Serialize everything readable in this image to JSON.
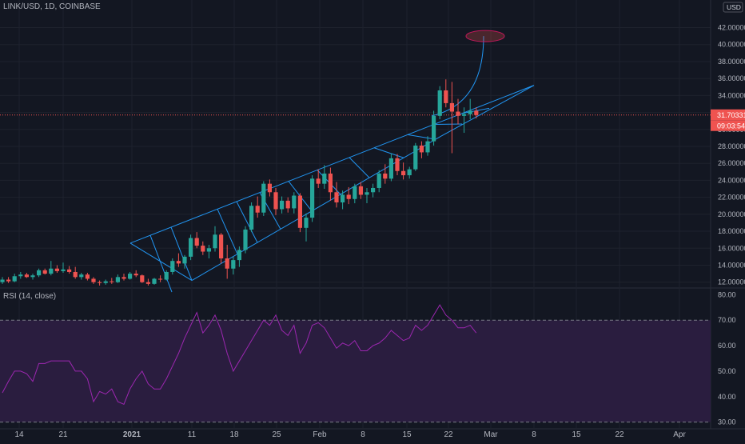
{
  "header": {
    "symbol_line": "LINK/USD, 1D, COINBASE"
  },
  "rsi_title": "RSI (14, close)",
  "price_badges": {
    "currency": "USD",
    "last_price": "31.70331",
    "countdown": "09:03:54"
  },
  "colors": {
    "background": "#131722",
    "up": "#26a69a",
    "down": "#ef5350",
    "channel": "#2196f3",
    "rsi_line": "#9c27b0",
    "rsi_band": "#2a1d3f",
    "price_line": "#ef5350",
    "grid": "#1e222d"
  },
  "chart_data": [
    {
      "type": "candlestick",
      "title": "LINK/USD, 1D, COINBASE",
      "ylim": [
        11.5,
        44.5
      ],
      "y_ticks": [
        "12.00000",
        "14.00000",
        "16.00000",
        "18.00000",
        "20.00000",
        "22.00000",
        "24.00000",
        "26.00000",
        "28.00000",
        "30.00000",
        "32.00000",
        "34.00000",
        "36.00000",
        "38.00000",
        "40.00000",
        "42.00000"
      ],
      "x_ticks": [
        "14",
        "21",
        "2021",
        "11",
        "18",
        "25",
        "Feb",
        "8",
        "15",
        "22",
        "Mar",
        "8",
        "15",
        "22",
        "Apr"
      ],
      "last_price": 31.70331,
      "candles": [
        [
          12.0,
          12.6,
          11.8,
          12.3
        ],
        [
          12.3,
          12.6,
          11.9,
          12.1
        ],
        [
          12.1,
          13.0,
          12.0,
          12.7
        ],
        [
          12.7,
          13.2,
          12.4,
          12.9
        ],
        [
          12.9,
          13.1,
          12.5,
          12.6
        ],
        [
          12.6,
          13.0,
          12.3,
          12.8
        ],
        [
          12.8,
          13.6,
          12.6,
          13.4
        ],
        [
          13.4,
          13.6,
          12.9,
          13.0
        ],
        [
          13.0,
          14.5,
          12.8,
          13.6
        ],
        [
          13.6,
          14.0,
          13.1,
          13.3
        ],
        [
          13.3,
          14.3,
          13.1,
          13.5
        ],
        [
          13.5,
          13.9,
          13.0,
          13.2
        ],
        [
          13.2,
          13.8,
          12.4,
          12.6
        ],
        [
          12.6,
          13.1,
          12.3,
          12.9
        ],
        [
          12.9,
          13.1,
          12.2,
          12.4
        ],
        [
          12.4,
          12.6,
          11.8,
          12.0
        ],
        [
          12.0,
          12.2,
          11.6,
          11.9
        ],
        [
          11.9,
          12.3,
          11.7,
          12.1
        ],
        [
          12.1,
          12.5,
          11.8,
          12.0
        ],
        [
          12.0,
          12.9,
          11.9,
          12.6
        ],
        [
          12.6,
          13.0,
          12.2,
          12.4
        ],
        [
          12.4,
          13.2,
          12.3,
          13.0
        ],
        [
          13.0,
          13.4,
          12.6,
          12.8
        ],
        [
          12.8,
          12.9,
          11.9,
          12.0
        ],
        [
          12.0,
          12.4,
          11.6,
          11.8
        ],
        [
          11.8,
          12.5,
          11.7,
          12.4
        ],
        [
          12.4,
          12.8,
          12.0,
          12.3
        ],
        [
          12.3,
          13.4,
          12.2,
          13.2
        ],
        [
          13.2,
          14.8,
          12.9,
          14.5
        ],
        [
          14.5,
          15.4,
          13.8,
          14.2
        ],
        [
          14.2,
          15.2,
          13.6,
          15.0
        ],
        [
          15.0,
          17.6,
          14.6,
          17.2
        ],
        [
          17.2,
          17.9,
          16.0,
          16.3
        ],
        [
          16.3,
          16.8,
          15.2,
          15.6
        ],
        [
          15.6,
          16.4,
          14.8,
          16.0
        ],
        [
          16.0,
          18.6,
          15.6,
          17.6
        ],
        [
          17.6,
          17.8,
          14.2,
          14.8
        ],
        [
          14.8,
          16.4,
          12.4,
          13.6
        ],
        [
          13.6,
          15.0,
          12.9,
          14.6
        ],
        [
          14.6,
          16.2,
          13.8,
          15.8
        ],
        [
          15.8,
          18.6,
          15.4,
          18.2
        ],
        [
          18.2,
          21.4,
          17.9,
          21.0
        ],
        [
          21.0,
          22.1,
          19.6,
          20.2
        ],
        [
          20.2,
          23.9,
          19.8,
          23.6
        ],
        [
          23.6,
          24.1,
          22.1,
          22.6
        ],
        [
          22.6,
          23.1,
          19.9,
          20.6
        ],
        [
          20.6,
          22.1,
          20.1,
          21.6
        ],
        [
          21.6,
          22.0,
          20.2,
          20.7
        ],
        [
          20.7,
          22.6,
          20.1,
          22.2
        ],
        [
          22.2,
          22.5,
          17.9,
          18.4
        ],
        [
          18.4,
          20.1,
          16.8,
          19.6
        ],
        [
          19.6,
          24.6,
          19.1,
          24.2
        ],
        [
          24.2,
          25.3,
          23.1,
          23.6
        ],
        [
          23.6,
          25.8,
          23.0,
          24.8
        ],
        [
          24.8,
          25.5,
          21.6,
          22.6
        ],
        [
          22.6,
          23.8,
          20.8,
          21.4
        ],
        [
          21.4,
          22.8,
          20.6,
          22.3
        ],
        [
          22.3,
          23.2,
          21.2,
          21.8
        ],
        [
          21.8,
          23.6,
          21.3,
          23.3
        ],
        [
          23.3,
          23.8,
          21.8,
          22.3
        ],
        [
          22.3,
          23.1,
          21.3,
          22.6
        ],
        [
          22.6,
          23.6,
          22.0,
          23.1
        ],
        [
          23.1,
          25.2,
          22.6,
          24.8
        ],
        [
          24.8,
          25.9,
          23.6,
          24.2
        ],
        [
          24.2,
          27.2,
          23.9,
          26.6
        ],
        [
          26.6,
          27.1,
          24.6,
          25.1
        ],
        [
          25.1,
          26.1,
          24.1,
          24.6
        ],
        [
          24.6,
          25.6,
          24.2,
          25.3
        ],
        [
          25.3,
          28.4,
          25.1,
          28.1
        ],
        [
          28.1,
          28.6,
          26.6,
          27.3
        ],
        [
          27.3,
          29.2,
          26.9,
          28.6
        ],
        [
          28.6,
          32.2,
          28.1,
          31.6
        ],
        [
          31.6,
          35.1,
          31.2,
          34.6
        ],
        [
          34.6,
          35.9,
          32.6,
          33.1
        ],
        [
          33.1,
          35.6,
          27.2,
          32.1
        ],
        [
          32.1,
          33.6,
          30.6,
          31.6
        ],
        [
          31.6,
          32.6,
          29.6,
          31.8
        ],
        [
          31.8,
          33.6,
          31.2,
          32.2
        ],
        [
          32.2,
          32.6,
          31.3,
          31.7
        ]
      ],
      "channel": {
        "lower_start": [
          "Jan 10",
          12.2
        ],
        "lower_end": [
          "Feb 28",
          32.6
        ],
        "upper_start": [
          "Dec 30",
          16.6
        ],
        "upper_end": [
          "Mar 8",
          35.2
        ],
        "target": 41.0
      }
    },
    {
      "type": "line",
      "title": "RSI (14, close)",
      "ylim": [
        28,
        82
      ],
      "y_ticks": [
        "30.00",
        "40.00",
        "50.00",
        "60.00",
        "70.00",
        "80.00"
      ],
      "band": [
        30,
        70
      ],
      "series": [
        {
          "values": [
            41.5,
            46,
            50,
            50,
            49,
            46,
            53,
            53,
            54,
            54,
            54,
            54,
            50,
            50,
            47,
            38,
            42,
            41,
            43,
            38,
            37,
            43,
            47,
            50,
            45,
            43,
            43,
            47,
            52,
            57,
            63,
            68,
            73,
            65,
            68,
            72,
            66,
            57,
            50,
            54,
            58,
            62,
            66,
            70,
            68,
            72,
            66,
            64,
            68,
            57,
            61,
            68,
            69,
            67,
            63,
            59,
            61,
            60,
            62,
            58,
            58,
            60,
            61,
            63,
            66,
            64,
            62,
            63,
            68,
            66,
            68,
            72,
            76,
            72,
            70,
            67,
            67,
            68,
            65
          ]
        }
      ]
    }
  ]
}
